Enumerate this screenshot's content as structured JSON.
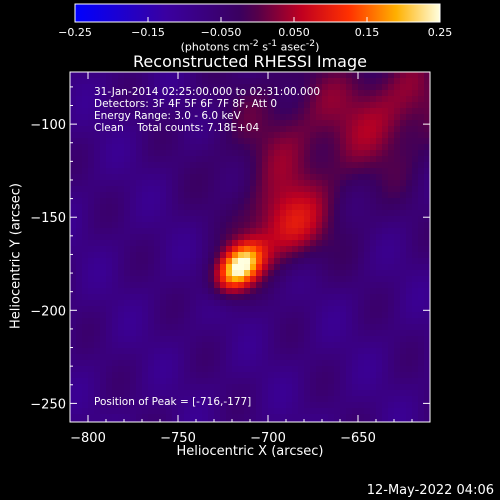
{
  "colorbar": {
    "tick_labels": [
      "-0.25",
      "-0.15",
      "-0.050",
      "0.050",
      "0.15",
      "0.25"
    ],
    "unit_parts": [
      "(photons cm",
      "-2",
      " s",
      "-1",
      " asec",
      "-2",
      ")"
    ],
    "range": [
      -0.25,
      0.25
    ]
  },
  "chart_data": {
    "type": "heatmap",
    "title": "Reconstructed RHESSI Image",
    "xlabel": "Heliocentric X (arcsec)",
    "ylabel": "Heliocentric Y (arcsec)",
    "xlim": [
      -810,
      -610
    ],
    "ylim": [
      -260,
      -72
    ],
    "x_ticks": [
      -800,
      -750,
      -700,
      -650
    ],
    "x_tick_labels": [
      "-800",
      "-750",
      "-700",
      "-650"
    ],
    "y_ticks": [
      -100,
      -150,
      -200,
      -250
    ],
    "y_tick_labels": [
      "-100",
      "-150",
      "-200",
      "-250"
    ],
    "peak_position": [
      -716,
      -177
    ],
    "annotations": [
      "31-Jan-2014 02:25:00.000 to 02:31:00.000",
      "Detectors: 3F 4F 5F 6F 7F 8F, Att 0",
      "Energy Range: 3.0 - 6.0 keV",
      "Clean    Total counts: 7.18E+04"
    ],
    "peak_label": "Position of Peak = [-716,-177]"
  },
  "footer": {
    "timestamp": "12-May-2022 04:06"
  }
}
